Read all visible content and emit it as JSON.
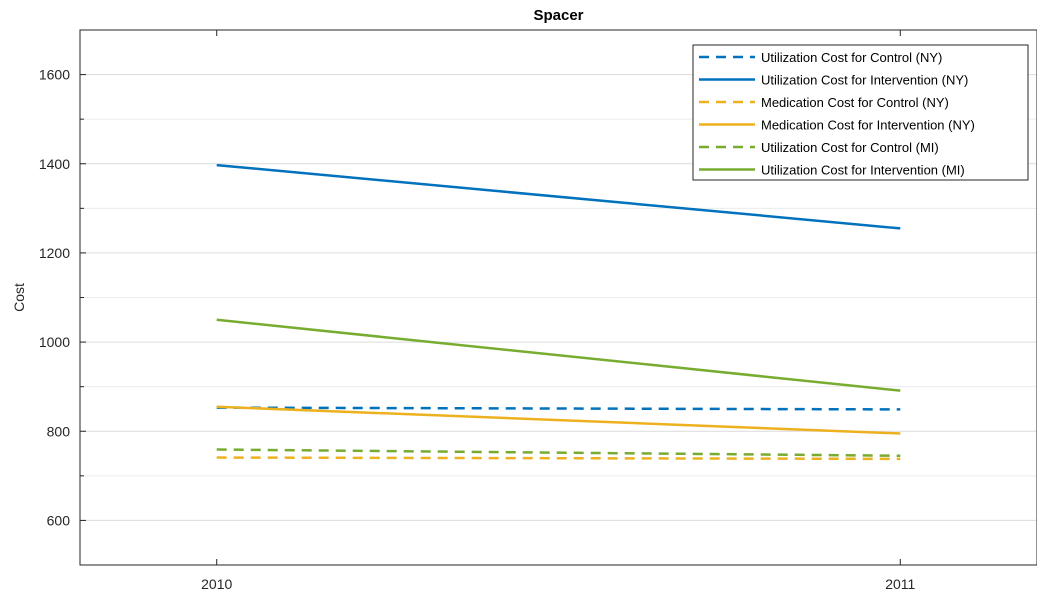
{
  "chart_data": {
    "type": "line",
    "title": "Spacer",
    "xlabel": "",
    "ylabel": "Cost",
    "x": [
      "2010",
      "2011"
    ],
    "xlim": [
      2009.8,
      2011.2
    ],
    "ylim": [
      500,
      1700
    ],
    "yticks": [
      600,
      800,
      1000,
      1200,
      1400,
      1600
    ],
    "grid": "horizontal",
    "legend_position": "top-right",
    "series": [
      {
        "name": "Utilization Cost for Control (NY)",
        "values": [
          853,
          849
        ],
        "color": "#0072BD",
        "dash": "dashed"
      },
      {
        "name": "Utilization Cost for Intervention (NY)",
        "values": [
          1397,
          1255
        ],
        "color": "#0072BD",
        "dash": "solid"
      },
      {
        "name": "Medication Cost for Control (NY)",
        "values": [
          741,
          738
        ],
        "color": "#EDB120",
        "dash": "dashed"
      },
      {
        "name": "Medication Cost for Intervention (NY)",
        "values": [
          855,
          795
        ],
        "color": "#EDB120",
        "dash": "solid"
      },
      {
        "name": "Utilization Cost for Control (MI)",
        "values": [
          759,
          745
        ],
        "color": "#77AC30",
        "dash": "dashed"
      },
      {
        "name": "Utilization Cost for Intervention (MI)",
        "values": [
          1050,
          891
        ],
        "color": "#77AC30",
        "dash": "solid"
      }
    ]
  }
}
